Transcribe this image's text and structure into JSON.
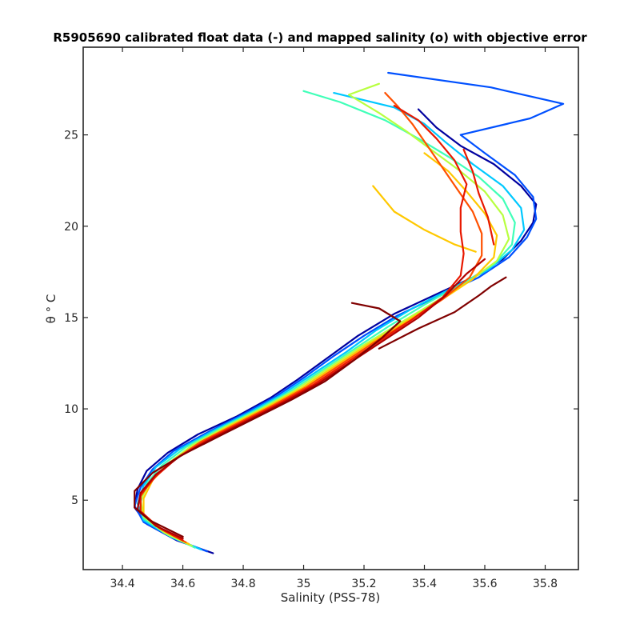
{
  "chart_data": {
    "type": "line",
    "title": "R5905690 calibrated float data (-) and mapped salinity (o) with objective error",
    "xlabel": "Salinity (PSS-78)",
    "ylabel": "θ ° C",
    "xlim": [
      34.27,
      35.91
    ],
    "ylim": [
      1.2,
      29.8
    ],
    "xticks": [
      "34.4",
      "34.6",
      "34.8",
      "35",
      "35.2",
      "35.4",
      "35.6",
      "35.8"
    ],
    "yticks": [
      "5",
      "10",
      "15",
      "20",
      "25"
    ],
    "grid": false,
    "legend": "none",
    "colormap": "jet (profile number)",
    "series": [
      {
        "color": "#00009f",
        "points": [
          [
            34.7,
            2.1
          ],
          [
            34.58,
            2.8
          ],
          [
            34.48,
            3.7
          ],
          [
            34.44,
            4.6
          ],
          [
            34.45,
            5.6
          ],
          [
            34.48,
            6.6
          ],
          [
            34.55,
            7.6
          ],
          [
            34.65,
            8.6
          ],
          [
            34.78,
            9.6
          ],
          [
            34.89,
            10.6
          ],
          [
            34.98,
            11.6
          ],
          [
            35.08,
            12.8
          ],
          [
            35.18,
            14.0
          ],
          [
            35.3,
            15.2
          ],
          [
            35.43,
            16.2
          ],
          [
            35.56,
            17.2
          ],
          [
            35.66,
            18.2
          ],
          [
            35.72,
            19.2
          ],
          [
            35.76,
            20.2
          ],
          [
            35.77,
            21.2
          ],
          [
            35.72,
            22.2
          ],
          [
            35.63,
            23.4
          ],
          [
            35.52,
            24.4
          ],
          [
            35.44,
            25.4
          ],
          [
            35.38,
            26.4
          ]
        ]
      },
      {
        "color": "#0050ff",
        "points": [
          [
            34.68,
            2.2
          ],
          [
            34.57,
            2.9
          ],
          [
            34.47,
            3.8
          ],
          [
            34.44,
            4.7
          ],
          [
            34.46,
            5.7
          ],
          [
            34.5,
            6.7
          ],
          [
            34.57,
            7.7
          ],
          [
            34.68,
            8.7
          ],
          [
            34.8,
            9.7
          ],
          [
            34.91,
            10.7
          ],
          [
            35.0,
            11.7
          ],
          [
            35.1,
            12.9
          ],
          [
            35.2,
            14.0
          ],
          [
            35.31,
            15.1
          ],
          [
            35.45,
            16.2
          ],
          [
            35.58,
            17.2
          ],
          [
            35.68,
            18.3
          ],
          [
            35.74,
            19.4
          ],
          [
            35.77,
            20.4
          ],
          [
            35.76,
            21.6
          ],
          [
            35.7,
            22.8
          ],
          [
            35.6,
            24.0
          ],
          [
            35.52,
            25.0
          ],
          [
            35.75,
            25.9
          ],
          [
            35.86,
            26.7
          ],
          [
            35.62,
            27.6
          ],
          [
            35.28,
            28.4
          ]
        ]
      },
      {
        "color": "#00c8ff",
        "points": [
          [
            34.66,
            2.3
          ],
          [
            34.56,
            3.0
          ],
          [
            34.47,
            3.9
          ],
          [
            34.45,
            4.8
          ],
          [
            34.47,
            5.8
          ],
          [
            34.51,
            6.8
          ],
          [
            34.59,
            7.8
          ],
          [
            34.7,
            8.8
          ],
          [
            34.82,
            9.8
          ],
          [
            34.93,
            10.8
          ],
          [
            35.03,
            11.9
          ],
          [
            35.14,
            13.1
          ],
          [
            35.24,
            14.3
          ],
          [
            35.36,
            15.5
          ],
          [
            35.49,
            16.6
          ],
          [
            35.61,
            17.6
          ],
          [
            35.69,
            18.7
          ],
          [
            35.73,
            19.8
          ],
          [
            35.72,
            21.0
          ],
          [
            35.66,
            22.2
          ],
          [
            35.56,
            23.4
          ],
          [
            35.47,
            24.6
          ],
          [
            35.4,
            25.6
          ],
          [
            35.3,
            26.5
          ],
          [
            35.1,
            27.3
          ]
        ]
      },
      {
        "color": "#40ffb8",
        "points": [
          [
            34.64,
            2.4
          ],
          [
            34.55,
            3.1
          ],
          [
            34.47,
            4.0
          ],
          [
            34.46,
            4.9
          ],
          [
            34.48,
            5.9
          ],
          [
            34.53,
            6.9
          ],
          [
            34.61,
            7.9
          ],
          [
            34.72,
            8.9
          ],
          [
            34.84,
            9.9
          ],
          [
            34.95,
            10.9
          ],
          [
            35.06,
            12.1
          ],
          [
            35.17,
            13.3
          ],
          [
            35.28,
            14.5
          ],
          [
            35.4,
            15.7
          ],
          [
            35.52,
            16.8
          ],
          [
            35.63,
            17.9
          ],
          [
            35.69,
            19.0
          ],
          [
            35.7,
            20.2
          ],
          [
            35.66,
            21.5
          ],
          [
            35.58,
            22.7
          ],
          [
            35.48,
            23.8
          ],
          [
            35.38,
            24.8
          ],
          [
            35.27,
            25.8
          ],
          [
            35.12,
            26.8
          ],
          [
            35.0,
            27.4
          ]
        ]
      },
      {
        "color": "#b8ff40",
        "points": [
          [
            34.63,
            2.5
          ],
          [
            34.54,
            3.2
          ],
          [
            34.47,
            4.1
          ],
          [
            34.46,
            5.0
          ],
          [
            34.49,
            6.0
          ],
          [
            34.55,
            7.0
          ],
          [
            34.63,
            8.0
          ],
          [
            34.74,
            9.0
          ],
          [
            34.86,
            10.0
          ],
          [
            34.97,
            11.0
          ],
          [
            35.08,
            12.2
          ],
          [
            35.19,
            13.4
          ],
          [
            35.31,
            14.6
          ],
          [
            35.43,
            15.8
          ],
          [
            35.55,
            17.0
          ],
          [
            35.64,
            18.1
          ],
          [
            35.68,
            19.3
          ],
          [
            35.66,
            20.6
          ],
          [
            35.6,
            21.9
          ],
          [
            35.52,
            23.0
          ],
          [
            35.43,
            24.1
          ],
          [
            35.34,
            25.2
          ],
          [
            35.25,
            26.2
          ],
          [
            35.15,
            27.2
          ],
          [
            35.25,
            27.8
          ]
        ]
      },
      {
        "color": "#ffc800",
        "points": [
          [
            34.62,
            2.6
          ],
          [
            34.54,
            3.3
          ],
          [
            34.47,
            4.2
          ],
          [
            34.47,
            5.1
          ],
          [
            34.5,
            6.1
          ],
          [
            34.56,
            7.1
          ],
          [
            34.65,
            8.1
          ],
          [
            34.76,
            9.1
          ],
          [
            34.88,
            10.1
          ],
          [
            34.99,
            11.1
          ],
          [
            35.1,
            12.3
          ],
          [
            35.21,
            13.5
          ],
          [
            35.33,
            14.7
          ],
          [
            35.45,
            15.9
          ],
          [
            35.56,
            17.1
          ],
          [
            35.63,
            18.3
          ],
          [
            35.64,
            19.5
          ],
          [
            35.6,
            20.7
          ],
          [
            35.54,
            21.9
          ],
          [
            35.48,
            23.0
          ],
          [
            35.4,
            24.0
          ]
        ]
      },
      {
        "color": "#ffc800",
        "points": [
          [
            35.57,
            18.6
          ],
          [
            35.5,
            19.0
          ],
          [
            35.4,
            19.8
          ],
          [
            35.3,
            20.8
          ],
          [
            35.23,
            22.2
          ]
        ]
      },
      {
        "color": "#ff5000",
        "points": [
          [
            34.61,
            2.7
          ],
          [
            34.53,
            3.4
          ],
          [
            34.46,
            4.3
          ],
          [
            34.46,
            5.2
          ],
          [
            34.5,
            6.2
          ],
          [
            34.57,
            7.2
          ],
          [
            34.66,
            8.2
          ],
          [
            34.78,
            9.2
          ],
          [
            34.9,
            10.2
          ],
          [
            35.01,
            11.2
          ],
          [
            35.12,
            12.4
          ],
          [
            35.23,
            13.6
          ],
          [
            35.35,
            14.8
          ],
          [
            35.46,
            16.0
          ],
          [
            35.55,
            17.2
          ],
          [
            35.59,
            18.4
          ],
          [
            35.59,
            19.6
          ],
          [
            35.56,
            20.8
          ],
          [
            35.51,
            22.0
          ],
          [
            35.46,
            23.2
          ],
          [
            35.41,
            24.4
          ],
          [
            35.36,
            25.6
          ],
          [
            35.31,
            26.6
          ],
          [
            35.27,
            27.3
          ]
        ]
      },
      {
        "color": "#e81800",
        "points": [
          [
            34.6,
            2.8
          ],
          [
            34.52,
            3.5
          ],
          [
            34.46,
            4.4
          ],
          [
            34.46,
            5.3
          ],
          [
            34.51,
            6.3
          ],
          [
            34.58,
            7.3
          ],
          [
            34.68,
            8.3
          ],
          [
            34.8,
            9.3
          ],
          [
            34.92,
            10.3
          ],
          [
            35.03,
            11.3
          ],
          [
            35.14,
            12.5
          ],
          [
            35.25,
            13.7
          ],
          [
            35.36,
            14.9
          ],
          [
            35.46,
            16.1
          ],
          [
            35.52,
            17.3
          ],
          [
            35.53,
            18.5
          ],
          [
            35.52,
            19.7
          ],
          [
            35.52,
            21.0
          ],
          [
            35.54,
            22.3
          ],
          [
            35.5,
            23.6
          ],
          [
            35.44,
            24.8
          ],
          [
            35.38,
            25.8
          ],
          [
            35.3,
            26.6
          ]
        ]
      },
      {
        "color": "#e81800",
        "points": [
          [
            35.63,
            19.0
          ],
          [
            35.61,
            20.5
          ],
          [
            35.58,
            21.8
          ],
          [
            35.56,
            23.0
          ],
          [
            35.53,
            24.2
          ]
        ]
      },
      {
        "color": "#b00000",
        "points": [
          [
            34.6,
            2.9
          ],
          [
            34.51,
            3.6
          ],
          [
            34.45,
            4.5
          ],
          [
            34.46,
            5.4
          ],
          [
            34.51,
            6.4
          ],
          [
            34.59,
            7.4
          ],
          [
            34.7,
            8.4
          ],
          [
            34.82,
            9.4
          ],
          [
            34.94,
            10.4
          ],
          [
            35.05,
            11.4
          ],
          [
            35.16,
            12.6
          ],
          [
            35.27,
            13.8
          ],
          [
            35.38,
            15.0
          ],
          [
            35.47,
            16.2
          ],
          [
            35.54,
            17.4
          ],
          [
            35.6,
            18.2
          ]
        ]
      },
      {
        "color": "#800000",
        "points": [
          [
            34.6,
            3.0
          ],
          [
            34.49,
            3.9
          ],
          [
            34.44,
            4.6
          ],
          [
            34.44,
            5.5
          ],
          [
            34.5,
            6.5
          ],
          [
            34.6,
            7.5
          ],
          [
            34.72,
            8.5
          ],
          [
            34.84,
            9.5
          ],
          [
            34.96,
            10.5
          ],
          [
            35.07,
            11.5
          ],
          [
            35.17,
            12.7
          ],
          [
            35.26,
            13.9
          ],
          [
            35.32,
            14.8
          ],
          [
            35.25,
            15.5
          ],
          [
            35.16,
            15.8
          ]
        ]
      },
      {
        "color": "#800000",
        "points": [
          [
            35.25,
            13.3
          ],
          [
            35.38,
            14.4
          ],
          [
            35.5,
            15.3
          ],
          [
            35.58,
            16.2
          ],
          [
            35.62,
            16.7
          ],
          [
            35.67,
            17.2
          ]
        ]
      }
    ]
  }
}
